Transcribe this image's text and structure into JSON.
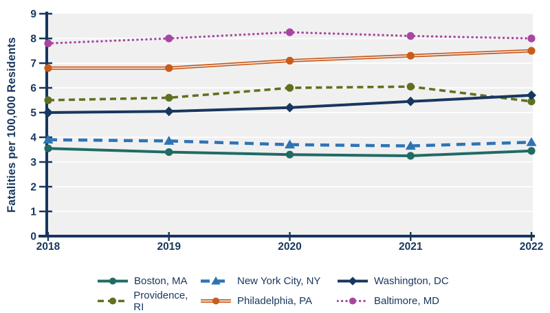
{
  "chart_data": {
    "type": "line",
    "title": "",
    "xlabel": "",
    "ylabel": "Fatalities per 100,000 Residents",
    "categories": [
      "2018",
      "2019",
      "2020",
      "2021",
      "2022"
    ],
    "ylim": [
      0,
      9
    ],
    "yticks": [
      0,
      1,
      2,
      3,
      4,
      5,
      6,
      7,
      8,
      9
    ],
    "grid": "horizontal",
    "legend_position": "bottom",
    "series": [
      {
        "name": "Boston, MA",
        "values": [
          3.55,
          3.4,
          3.3,
          3.25,
          3.45
        ],
        "color": "#206B63",
        "line_style": "solid",
        "marker": "circle"
      },
      {
        "name": "New York City, NY",
        "values": [
          3.9,
          3.85,
          3.7,
          3.65,
          3.8
        ],
        "color": "#2E74B5",
        "line_style": "long-dash",
        "marker": "triangle"
      },
      {
        "name": "Washington, DC",
        "values": [
          5.0,
          5.05,
          5.2,
          5.45,
          5.7
        ],
        "color": "#18375F",
        "line_style": "solid",
        "marker": "diamond"
      },
      {
        "name": "Providence, RI",
        "values": [
          5.5,
          5.6,
          6.0,
          6.05,
          5.45
        ],
        "color": "#60701F",
        "line_style": "short-dash",
        "marker": "circle"
      },
      {
        "name": "Philadelphia, PA",
        "values": [
          6.8,
          6.8,
          7.1,
          7.3,
          7.5
        ],
        "color": "#C95B1B",
        "line_style": "double",
        "marker": "circle"
      },
      {
        "name": "Baltimore, MD",
        "values": [
          7.8,
          8.0,
          8.25,
          8.1,
          8.0
        ],
        "color": "#A845A1",
        "line_style": "dotted",
        "marker": "circle"
      }
    ],
    "colors": {
      "axis": "#17365D",
      "tick_label": "#17365D",
      "legend_label": "#17365D",
      "plot_bg": "#F0F0F0",
      "gridline": "#FFFFFF",
      "page_bg": "#FFFFFF"
    }
  }
}
